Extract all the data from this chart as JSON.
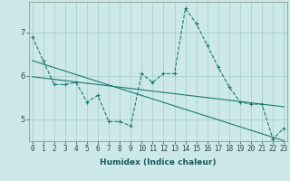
{
  "title": "",
  "xlabel": "Humidex (Indice chaleur)",
  "bg_color": "#cce8e8",
  "line_color": "#1a7a6e",
  "grid_color": "#aacfcf",
  "x_data": [
    0,
    1,
    2,
    3,
    4,
    5,
    6,
    7,
    8,
    9,
    10,
    11,
    12,
    13,
    14,
    15,
    16,
    17,
    18,
    19,
    20,
    21,
    22,
    23
  ],
  "y_main": [
    6.9,
    6.35,
    5.8,
    5.8,
    5.85,
    5.4,
    5.55,
    4.95,
    4.95,
    4.85,
    6.05,
    5.85,
    6.05,
    6.05,
    7.55,
    7.2,
    6.7,
    6.2,
    5.75,
    5.4,
    5.35,
    5.35,
    4.55,
    4.8
  ],
  "y_trend1": [
    6.35,
    6.27,
    6.19,
    6.11,
    6.03,
    5.95,
    5.87,
    5.79,
    5.71,
    5.63,
    5.55,
    5.47,
    5.39,
    5.31,
    5.23,
    5.15,
    5.07,
    4.99,
    4.91,
    4.83,
    4.75,
    4.67,
    4.59,
    4.51
  ],
  "y_trend2": [
    5.98,
    5.95,
    5.92,
    5.89,
    5.86,
    5.83,
    5.8,
    5.77,
    5.74,
    5.71,
    5.68,
    5.65,
    5.62,
    5.59,
    5.56,
    5.53,
    5.5,
    5.47,
    5.44,
    5.41,
    5.38,
    5.35,
    5.32,
    5.29
  ],
  "xlim": [
    -0.3,
    23.3
  ],
  "ylim": [
    4.5,
    7.7
  ],
  "yticks": [
    5,
    6,
    7
  ],
  "xticks": [
    0,
    1,
    2,
    3,
    4,
    5,
    6,
    7,
    8,
    9,
    10,
    11,
    12,
    13,
    14,
    15,
    16,
    17,
    18,
    19,
    20,
    21,
    22,
    23
  ],
  "xlabel_fontsize": 6.5,
  "tick_fontsize": 5.5
}
